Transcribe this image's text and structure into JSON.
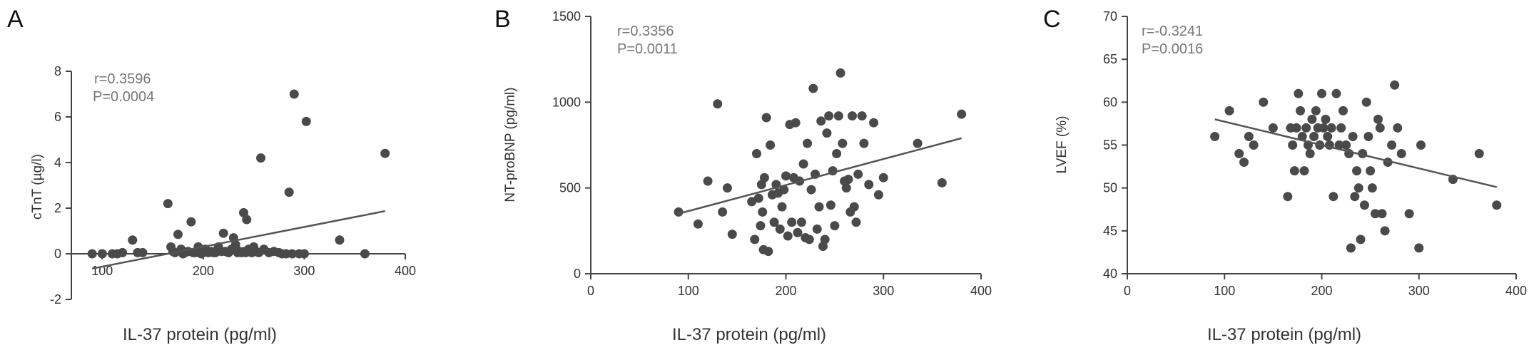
{
  "chart_data": [
    {
      "type": "scatter",
      "panel": "A",
      "stats": [
        "r=0.3596",
        "P=0.0004"
      ],
      "xlabel": "IL-37 protein  (pg/ml)",
      "ylabel": "cTnT (µg/l)",
      "xlim": [
        80,
        400
      ],
      "ylim": [
        -2,
        8
      ],
      "xticks": [
        100,
        200,
        300,
        400
      ],
      "yticks": [
        -2,
        0,
        2,
        4,
        6,
        8
      ],
      "zero_line": true,
      "trend": [
        [
          90,
          -0.65
        ],
        [
          380,
          1.87
        ]
      ],
      "points": [
        [
          90,
          0
        ],
        [
          100,
          0
        ],
        [
          110,
          0
        ],
        [
          115,
          0
        ],
        [
          120,
          0.05
        ],
        [
          130,
          0.6
        ],
        [
          135,
          0.05
        ],
        [
          140,
          0.05
        ],
        [
          165,
          2.2
        ],
        [
          168,
          0.3
        ],
        [
          170,
          0.1
        ],
        [
          172,
          0.05
        ],
        [
          175,
          0.85
        ],
        [
          178,
          0.2
        ],
        [
          180,
          0
        ],
        [
          182,
          0.05
        ],
        [
          185,
          0.1
        ],
        [
          188,
          1.4
        ],
        [
          190,
          0.05
        ],
        [
          192,
          0.05
        ],
        [
          195,
          0.3
        ],
        [
          198,
          0
        ],
        [
          200,
          0.05
        ],
        [
          202,
          0.2
        ],
        [
          205,
          0.05
        ],
        [
          208,
          0.1
        ],
        [
          210,
          0.05
        ],
        [
          212,
          0.05
        ],
        [
          215,
          0.3
        ],
        [
          218,
          0.1
        ],
        [
          220,
          0.9
        ],
        [
          222,
          0.1
        ],
        [
          225,
          0.05
        ],
        [
          228,
          0.2
        ],
        [
          230,
          0.7
        ],
        [
          232,
          0.4
        ],
        [
          234,
          0.05
        ],
        [
          236,
          0.1
        ],
        [
          238,
          0.05
        ],
        [
          240,
          1.8
        ],
        [
          241,
          0.1
        ],
        [
          242,
          0.05
        ],
        [
          243,
          1.5
        ],
        [
          245,
          0.2
        ],
        [
          248,
          0.05
        ],
        [
          250,
          0.3
        ],
        [
          252,
          0.1
        ],
        [
          255,
          0.05
        ],
        [
          257,
          4.2
        ],
        [
          260,
          0.2
        ],
        [
          265,
          0.05
        ],
        [
          270,
          0.1
        ],
        [
          275,
          0.05
        ],
        [
          278,
          0
        ],
        [
          282,
          0
        ],
        [
          285,
          2.7
        ],
        [
          288,
          0
        ],
        [
          290,
          7.0
        ],
        [
          295,
          0
        ],
        [
          300,
          0
        ],
        [
          302,
          5.8
        ],
        [
          335,
          0.6
        ],
        [
          360,
          0
        ],
        [
          380,
          4.4
        ]
      ]
    },
    {
      "type": "scatter",
      "panel": "B",
      "stats": [
        "r=0.3356",
        "P=0.0011"
      ],
      "xlabel": "IL-37 protein  (pg/ml)",
      "ylabel": "NT-proBNP (pg/ml)",
      "xlim": [
        0,
        400
      ],
      "ylim": [
        0,
        1500
      ],
      "xticks": [
        0,
        100,
        200,
        300,
        400
      ],
      "yticks": [
        0,
        500,
        1000,
        1500
      ],
      "zero_line": false,
      "trend": [
        [
          90,
          350
        ],
        [
          380,
          790
        ]
      ],
      "points": [
        [
          90,
          360
        ],
        [
          110,
          290
        ],
        [
          120,
          540
        ],
        [
          130,
          990
        ],
        [
          135,
          360
        ],
        [
          140,
          500
        ],
        [
          145,
          230
        ],
        [
          165,
          420
        ],
        [
          168,
          200
        ],
        [
          170,
          700
        ],
        [
          172,
          440
        ],
        [
          174,
          280
        ],
        [
          175,
          520
        ],
        [
          176,
          360
        ],
        [
          177,
          140
        ],
        [
          178,
          560
        ],
        [
          180,
          910
        ],
        [
          182,
          130
        ],
        [
          184,
          750
        ],
        [
          186,
          460
        ],
        [
          188,
          300
        ],
        [
          190,
          520
        ],
        [
          192,
          470
        ],
        [
          194,
          260
        ],
        [
          196,
          390
        ],
        [
          198,
          490
        ],
        [
          200,
          570
        ],
        [
          202,
          220
        ],
        [
          204,
          870
        ],
        [
          206,
          300
        ],
        [
          208,
          560
        ],
        [
          210,
          880
        ],
        [
          212,
          240
        ],
        [
          214,
          540
        ],
        [
          216,
          300
        ],
        [
          218,
          640
        ],
        [
          220,
          210
        ],
        [
          222,
          760
        ],
        [
          224,
          200
        ],
        [
          226,
          490
        ],
        [
          228,
          1080
        ],
        [
          230,
          580
        ],
        [
          232,
          260
        ],
        [
          234,
          390
        ],
        [
          236,
          890
        ],
        [
          238,
          160
        ],
        [
          240,
          200
        ],
        [
          242,
          820
        ],
        [
          244,
          920
        ],
        [
          246,
          400
        ],
        [
          248,
          600
        ],
        [
          250,
          280
        ],
        [
          252,
          700
        ],
        [
          254,
          920
        ],
        [
          256,
          1170
        ],
        [
          258,
          760
        ],
        [
          260,
          540
        ],
        [
          262,
          500
        ],
        [
          264,
          550
        ],
        [
          266,
          360
        ],
        [
          268,
          920
        ],
        [
          270,
          390
        ],
        [
          272,
          300
        ],
        [
          274,
          580
        ],
        [
          278,
          920
        ],
        [
          280,
          760
        ],
        [
          285,
          520
        ],
        [
          290,
          880
        ],
        [
          295,
          460
        ],
        [
          300,
          560
        ],
        [
          335,
          760
        ],
        [
          360,
          530
        ],
        [
          380,
          930
        ]
      ]
    },
    {
      "type": "scatter",
      "panel": "C",
      "stats": [
        "r=-0.3241",
        "P=0.0016"
      ],
      "xlabel": "IL-37 protein  (pg/ml)",
      "ylabel": "LVEF (%)",
      "xlim": [
        0,
        400
      ],
      "ylim": [
        40,
        70
      ],
      "xticks": [
        0,
        100,
        200,
        300,
        400
      ],
      "yticks": [
        40,
        45,
        50,
        55,
        60,
        65,
        70
      ],
      "zero_line": false,
      "trend": [
        [
          90,
          58.0
        ],
        [
          380,
          50.1
        ]
      ],
      "points": [
        [
          90,
          56
        ],
        [
          105,
          59
        ],
        [
          115,
          54
        ],
        [
          120,
          53
        ],
        [
          125,
          56
        ],
        [
          130,
          55
        ],
        [
          140,
          60
        ],
        [
          150,
          57
        ],
        [
          165,
          49
        ],
        [
          168,
          57
        ],
        [
          170,
          55
        ],
        [
          172,
          52
        ],
        [
          174,
          57
        ],
        [
          176,
          61
        ],
        [
          178,
          59
        ],
        [
          180,
          56
        ],
        [
          182,
          52
        ],
        [
          184,
          57
        ],
        [
          186,
          55
        ],
        [
          188,
          54
        ],
        [
          190,
          58
        ],
        [
          192,
          56
        ],
        [
          194,
          59
        ],
        [
          196,
          57
        ],
        [
          198,
          55
        ],
        [
          200,
          61
        ],
        [
          202,
          57
        ],
        [
          204,
          58
        ],
        [
          206,
          56
        ],
        [
          208,
          55
        ],
        [
          210,
          57
        ],
        [
          212,
          49
        ],
        [
          215,
          61
        ],
        [
          218,
          55
        ],
        [
          220,
          57
        ],
        [
          222,
          59
        ],
        [
          225,
          55
        ],
        [
          228,
          54
        ],
        [
          230,
          43
        ],
        [
          232,
          56
        ],
        [
          234,
          49
        ],
        [
          236,
          52
        ],
        [
          238,
          50
        ],
        [
          240,
          44
        ],
        [
          242,
          54
        ],
        [
          244,
          48
        ],
        [
          246,
          60
        ],
        [
          248,
          56
        ],
        [
          250,
          52
        ],
        [
          252,
          50
        ],
        [
          255,
          47
        ],
        [
          258,
          58
        ],
        [
          260,
          57
        ],
        [
          262,
          47
        ],
        [
          265,
          45
        ],
        [
          268,
          53
        ],
        [
          272,
          55
        ],
        [
          275,
          62
        ],
        [
          278,
          57
        ],
        [
          282,
          54
        ],
        [
          290,
          47
        ],
        [
          300,
          43
        ],
        [
          302,
          55
        ],
        [
          335,
          51
        ],
        [
          362,
          54
        ],
        [
          380,
          48
        ]
      ]
    }
  ],
  "panels": {
    "a": {
      "letter": "A"
    },
    "b": {
      "letter": "B"
    },
    "c": {
      "letter": "C"
    }
  }
}
